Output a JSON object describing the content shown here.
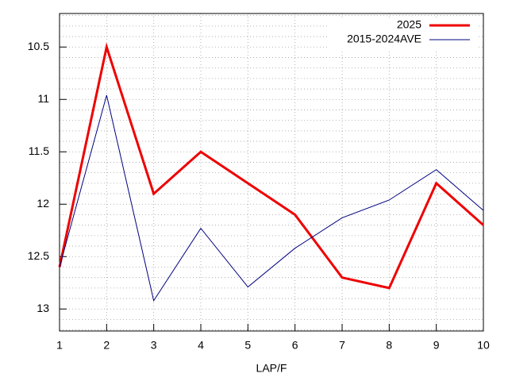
{
  "chart_data": {
    "type": "line",
    "x": [
      1,
      2,
      3,
      4,
      5,
      6,
      7,
      8,
      9,
      10
    ],
    "series": [
      {
        "name": "2025",
        "color": "#ee0000",
        "width": 3,
        "values": [
          12.6,
          10.5,
          11.9,
          11.5,
          11.8,
          12.1,
          12.7,
          12.8,
          11.8,
          12.2
        ]
      },
      {
        "name": "2015-2024AVE",
        "color": "#000080",
        "width": 1,
        "values": [
          12.6,
          10.96,
          12.92,
          12.23,
          12.79,
          12.42,
          12.13,
          11.96,
          11.67,
          12.06
        ]
      }
    ],
    "xlabel": "LAP/F",
    "xlim": [
      1,
      10
    ],
    "xticks": [
      1,
      2,
      3,
      4,
      5,
      6,
      7,
      8,
      9,
      10
    ],
    "ylim": [
      10.18,
      13.21
    ],
    "y_inverted": true,
    "yticks": [
      10.5,
      11,
      11.5,
      12,
      12.5,
      13
    ],
    "yminorticks": [
      10.2,
      10.3,
      10.4,
      10.6,
      10.7,
      10.8,
      10.9,
      11.1,
      11.2,
      11.3,
      11.4,
      11.6,
      11.7,
      11.8,
      11.9,
      12.1,
      12.2,
      12.3,
      12.4,
      12.6,
      12.7,
      12.8,
      12.9,
      13.1,
      13.2
    ],
    "grid": true,
    "legend": "top-right"
  }
}
